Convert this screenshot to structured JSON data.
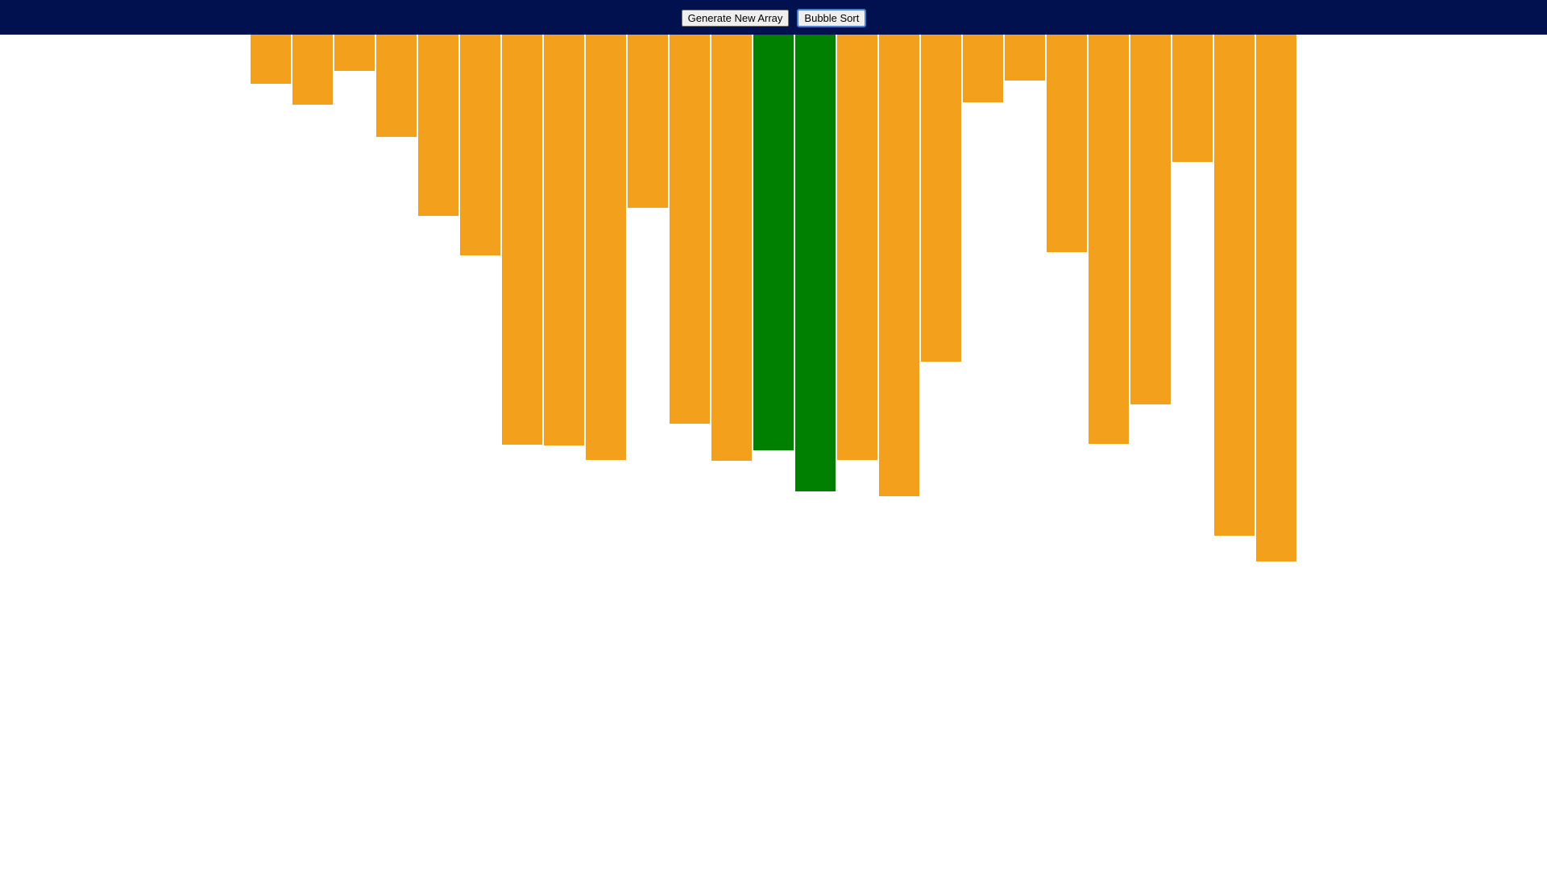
{
  "toolbar": {
    "generate_label": "Generate New Array",
    "sort_label": "Bubble Sort"
  },
  "colors": {
    "topbar": "#01104f",
    "bar_default": "#f3a11d",
    "bar_comparing": "#008000"
  },
  "array": {
    "values": [
      61,
      87,
      45,
      127,
      225,
      274,
      509,
      510,
      528,
      215,
      483,
      529,
      516,
      567,
      528,
      573,
      406,
      84,
      57,
      270,
      508,
      459,
      158,
      622,
      654
    ],
    "highlighted_indices": [
      12,
      13
    ]
  }
}
